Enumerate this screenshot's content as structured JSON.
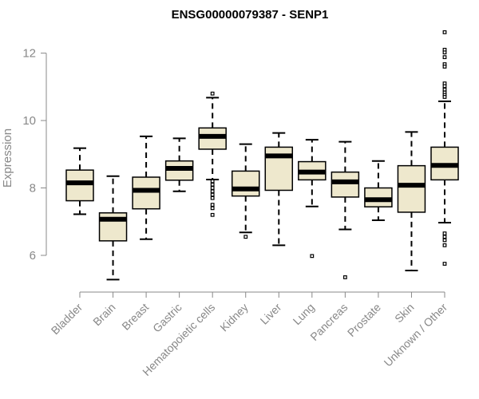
{
  "chart_data": {
    "type": "boxplot",
    "title": "ENSG00000079387 - SENP1",
    "xlabel": "",
    "ylabel": "Expression",
    "ylim": [
      5.1,
      12.7
    ],
    "yticks": [
      "6",
      "8",
      "10",
      "12"
    ],
    "box_fill": "#EEE8CD",
    "categories": [
      "Bladder",
      "Brain",
      "Breast",
      "Gastric",
      "Hematopoietic cells",
      "Kidney",
      "Liver",
      "Lung",
      "Pancreas",
      "Prostate",
      "Skin",
      "Unknown / Other"
    ],
    "boxes": [
      {
        "min": 7.22,
        "q1": 7.62,
        "median": 8.15,
        "q3": 8.53,
        "max": 9.18,
        "outliers": []
      },
      {
        "min": 5.28,
        "q1": 6.43,
        "median": 7.07,
        "q3": 7.26,
        "max": 8.35,
        "outliers": []
      },
      {
        "min": 6.48,
        "q1": 7.38,
        "median": 7.93,
        "q3": 8.32,
        "max": 9.53,
        "outliers": []
      },
      {
        "min": 7.9,
        "q1": 8.23,
        "median": 8.58,
        "q3": 8.8,
        "max": 9.47,
        "outliers": []
      },
      {
        "min": 8.25,
        "q1": 9.15,
        "median": 9.53,
        "q3": 9.78,
        "max": 10.68,
        "outliers": [
          10.8,
          8.2,
          8.1,
          8.0,
          7.9,
          7.8,
          7.7,
          7.5,
          7.4,
          7.2
        ]
      },
      {
        "min": 6.68,
        "q1": 7.76,
        "median": 7.97,
        "q3": 8.5,
        "max": 9.3,
        "outliers": [
          6.55
        ]
      },
      {
        "min": 6.3,
        "q1": 7.93,
        "median": 8.95,
        "q3": 9.21,
        "max": 9.63,
        "outliers": []
      },
      {
        "min": 7.45,
        "q1": 8.24,
        "median": 8.47,
        "q3": 8.78,
        "max": 9.43,
        "outliers": [
          5.98
        ]
      },
      {
        "min": 6.77,
        "q1": 7.73,
        "median": 8.18,
        "q3": 8.47,
        "max": 9.37,
        "outliers": [
          5.35
        ]
      },
      {
        "min": 7.04,
        "q1": 7.44,
        "median": 7.65,
        "q3": 8.0,
        "max": 8.8,
        "outliers": []
      },
      {
        "min": 5.55,
        "q1": 7.28,
        "median": 8.08,
        "q3": 8.66,
        "max": 9.66,
        "outliers": []
      },
      {
        "min": 6.97,
        "q1": 8.24,
        "median": 8.67,
        "q3": 9.21,
        "max": 10.57,
        "outliers": [
          12.62,
          12.1,
          12.02,
          11.88,
          11.67,
          11.6,
          11.1,
          11.02,
          10.92,
          10.83,
          10.76,
          10.7,
          6.65,
          6.55,
          6.45,
          6.3,
          5.75
        ]
      }
    ]
  }
}
